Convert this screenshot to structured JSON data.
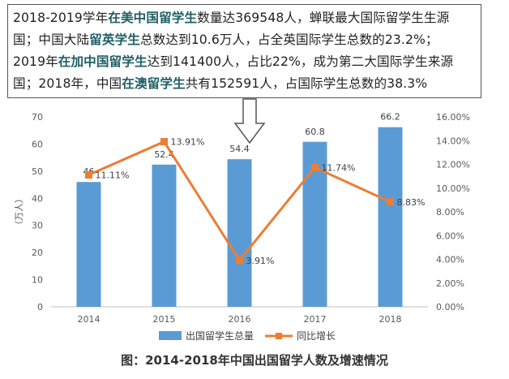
{
  "callout": {
    "lines": [
      [
        {
          "t": "2018-2019学年",
          "hl": false
        },
        {
          "t": "在美中国留学生",
          "hl": true
        },
        {
          "t": "数量达369548人，蝉联最大国际留学生生源",
          "hl": false
        }
      ],
      [
        {
          "t": "国；中国大陆",
          "hl": false
        },
        {
          "t": "留英学生",
          "hl": true
        },
        {
          "t": "总数达到10.6万人，占全英国际学生总数的23.2%；",
          "hl": false
        }
      ],
      [
        {
          "t": "2019年",
          "hl": false
        },
        {
          "t": "在加中国留学生",
          "hl": true
        },
        {
          "t": "达到141400人，占比22%，成为第二大国际学生来源",
          "hl": false
        }
      ],
      [
        {
          "t": "国；2018年，中国",
          "hl": false
        },
        {
          "t": "在澳留学生",
          "hl": true
        },
        {
          "t": "共有152591人，占国际学生总数的38.3%",
          "hl": false
        }
      ]
    ]
  },
  "chart_data": {
    "type": "bar",
    "categories": [
      "2014",
      "2015",
      "2016",
      "2017",
      "2018"
    ],
    "series": [
      {
        "name": "出国留学生总量",
        "type": "bar",
        "axis": "left",
        "color": "#5b9bd5",
        "values": [
          46,
          52.4,
          54.4,
          60.8,
          66.2
        ],
        "labels": [
          "46",
          "52.4",
          "54.4",
          "60.8",
          "66.2"
        ]
      },
      {
        "name": "同比增长",
        "type": "line",
        "axis": "right",
        "color": "#ed7d31",
        "values": [
          11.11,
          13.91,
          3.91,
          11.74,
          8.83
        ],
        "labels": [
          "11.11%",
          "13.91%",
          "3.91%",
          "11.74%",
          "8.83%"
        ]
      }
    ],
    "ylabel": "（万人）",
    "ylim": [
      0,
      70
    ],
    "yticks": [
      "0",
      "10",
      "20",
      "30",
      "40",
      "50",
      "60",
      "70"
    ],
    "y2lim": [
      0,
      16
    ],
    "y2ticks": [
      "0.00%",
      "2.00%",
      "4.00%",
      "6.00%",
      "8.00%",
      "10.00%",
      "12.00%",
      "14.00%",
      "16.00%"
    ],
    "legend_position": "bottom",
    "grid": false,
    "caption": "图：2014-2018年中国出国留学人数及增速情况"
  }
}
